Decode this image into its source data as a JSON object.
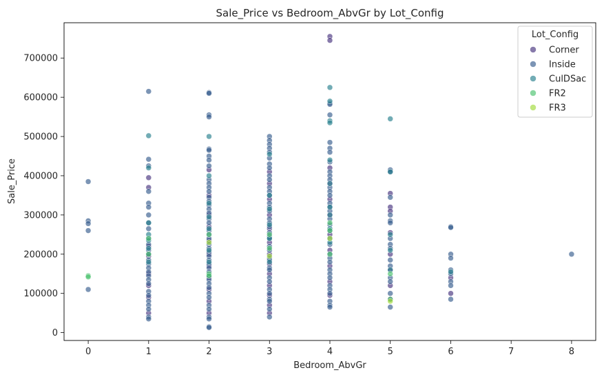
{
  "chart_data": {
    "type": "scatter",
    "title": "Sale_Price vs Bedroom_AbvGr by Lot_Config",
    "xlabel": "Bedroom_AbvGr",
    "ylabel": "Sale_Price",
    "xlim": [
      -0.4,
      8.4
    ],
    "ylim": [
      -20000,
      790000
    ],
    "xticks": [
      0,
      1,
      2,
      3,
      4,
      5,
      6,
      7,
      8
    ],
    "yticks": [
      0,
      100000,
      200000,
      300000,
      400000,
      500000,
      600000,
      700000
    ],
    "grid": false,
    "legend": {
      "title": "Lot_Config",
      "placement": "top-right"
    },
    "series": [
      {
        "name": "Corner",
        "color": "#46327e",
        "points": [
          [
            1,
            395000
          ],
          [
            1,
            370000
          ],
          [
            1,
            220000
          ],
          [
            1,
            195000
          ],
          [
            1,
            150000
          ],
          [
            1,
            120000
          ],
          [
            1,
            90000
          ],
          [
            1,
            50000
          ],
          [
            2,
            415000
          ],
          [
            2,
            350000
          ],
          [
            2,
            300000
          ],
          [
            2,
            270000
          ],
          [
            2,
            235000
          ],
          [
            2,
            200000
          ],
          [
            2,
            170000
          ],
          [
            2,
            140000
          ],
          [
            2,
            110000
          ],
          [
            2,
            80000
          ],
          [
            2,
            50000
          ],
          [
            3,
            410000
          ],
          [
            3,
            380000
          ],
          [
            3,
            340000
          ],
          [
            3,
            300000
          ],
          [
            3,
            265000
          ],
          [
            3,
            230000
          ],
          [
            3,
            200000
          ],
          [
            3,
            175000
          ],
          [
            3,
            150000
          ],
          [
            3,
            120000
          ],
          [
            3,
            95000
          ],
          [
            3,
            70000
          ],
          [
            3,
            50000
          ],
          [
            4,
            755000
          ],
          [
            4,
            745000
          ],
          [
            4,
            420000
          ],
          [
            4,
            380000
          ],
          [
            4,
            340000
          ],
          [
            4,
            300000
          ],
          [
            4,
            250000
          ],
          [
            4,
            210000
          ],
          [
            4,
            170000
          ],
          [
            4,
            130000
          ],
          [
            4,
            95000
          ],
          [
            5,
            355000
          ],
          [
            5,
            320000
          ],
          [
            5,
            310000
          ],
          [
            5,
            255000
          ],
          [
            5,
            200000
          ],
          [
            5,
            160000
          ],
          [
            5,
            120000
          ],
          [
            5,
            85000
          ],
          [
            6,
            140000
          ],
          [
            6,
            100000
          ]
        ]
      },
      {
        "name": "Inside",
        "color": "#365c8d",
        "points": [
          [
            0,
            385000
          ],
          [
            0,
            285000
          ],
          [
            0,
            278000
          ],
          [
            0,
            260000
          ],
          [
            0,
            110000
          ],
          [
            1,
            615000
          ],
          [
            1,
            442000
          ],
          [
            1,
            425000
          ],
          [
            1,
            360000
          ],
          [
            1,
            330000
          ],
          [
            1,
            320000
          ],
          [
            1,
            300000
          ],
          [
            1,
            280000
          ],
          [
            1,
            265000
          ],
          [
            1,
            240000
          ],
          [
            1,
            225000
          ],
          [
            1,
            210000
          ],
          [
            1,
            200000
          ],
          [
            1,
            185000
          ],
          [
            1,
            175000
          ],
          [
            1,
            165000
          ],
          [
            1,
            155000
          ],
          [
            1,
            145000
          ],
          [
            1,
            135000
          ],
          [
            1,
            125000
          ],
          [
            1,
            105000
          ],
          [
            1,
            95000
          ],
          [
            1,
            80000
          ],
          [
            1,
            70000
          ],
          [
            1,
            60000
          ],
          [
            1,
            40000
          ],
          [
            1,
            35000
          ],
          [
            2,
            612000
          ],
          [
            2,
            610000
          ],
          [
            2,
            555000
          ],
          [
            2,
            550000
          ],
          [
            2,
            468000
          ],
          [
            2,
            465000
          ],
          [
            2,
            450000
          ],
          [
            2,
            440000
          ],
          [
            2,
            425000
          ],
          [
            2,
            390000
          ],
          [
            2,
            380000
          ],
          [
            2,
            370000
          ],
          [
            2,
            360000
          ],
          [
            2,
            345000
          ],
          [
            2,
            335000
          ],
          [
            2,
            325000
          ],
          [
            2,
            315000
          ],
          [
            2,
            305000
          ],
          [
            2,
            290000
          ],
          [
            2,
            280000
          ],
          [
            2,
            260000
          ],
          [
            2,
            250000
          ],
          [
            2,
            240000
          ],
          [
            2,
            225000
          ],
          [
            2,
            215000
          ],
          [
            2,
            205000
          ],
          [
            2,
            195000
          ],
          [
            2,
            185000
          ],
          [
            2,
            175000
          ],
          [
            2,
            165000
          ],
          [
            2,
            155000
          ],
          [
            2,
            145000
          ],
          [
            2,
            135000
          ],
          [
            2,
            125000
          ],
          [
            2,
            115000
          ],
          [
            2,
            100000
          ],
          [
            2,
            90000
          ],
          [
            2,
            70000
          ],
          [
            2,
            60000
          ],
          [
            2,
            40000
          ],
          [
            2,
            35000
          ],
          [
            2,
            15000
          ],
          [
            2,
            13000
          ],
          [
            3,
            500000
          ],
          [
            3,
            490000
          ],
          [
            3,
            480000
          ],
          [
            3,
            470000
          ],
          [
            3,
            460000
          ],
          [
            3,
            445000
          ],
          [
            3,
            430000
          ],
          [
            3,
            420000
          ],
          [
            3,
            400000
          ],
          [
            3,
            390000
          ],
          [
            3,
            370000
          ],
          [
            3,
            360000
          ],
          [
            3,
            350000
          ],
          [
            3,
            330000
          ],
          [
            3,
            320000
          ],
          [
            3,
            310000
          ],
          [
            3,
            290000
          ],
          [
            3,
            280000
          ],
          [
            3,
            270000
          ],
          [
            3,
            255000
          ],
          [
            3,
            245000
          ],
          [
            3,
            240000
          ],
          [
            3,
            220000
          ],
          [
            3,
            210000
          ],
          [
            3,
            190000
          ],
          [
            3,
            185000
          ],
          [
            3,
            165000
          ],
          [
            3,
            160000
          ],
          [
            3,
            140000
          ],
          [
            3,
            130000
          ],
          [
            3,
            110000
          ],
          [
            3,
            100000
          ],
          [
            3,
            85000
          ],
          [
            3,
            80000
          ],
          [
            3,
            60000
          ],
          [
            3,
            40000
          ],
          [
            4,
            585000
          ],
          [
            4,
            582000
          ],
          [
            4,
            555000
          ],
          [
            4,
            485000
          ],
          [
            4,
            470000
          ],
          [
            4,
            460000
          ],
          [
            4,
            435000
          ],
          [
            4,
            410000
          ],
          [
            4,
            400000
          ],
          [
            4,
            390000
          ],
          [
            4,
            370000
          ],
          [
            4,
            360000
          ],
          [
            4,
            350000
          ],
          [
            4,
            330000
          ],
          [
            4,
            320000
          ],
          [
            4,
            310000
          ],
          [
            4,
            290000
          ],
          [
            4,
            275000
          ],
          [
            4,
            260000
          ],
          [
            4,
            240000
          ],
          [
            4,
            225000
          ],
          [
            4,
            200000
          ],
          [
            4,
            190000
          ],
          [
            4,
            180000
          ],
          [
            4,
            160000
          ],
          [
            4,
            150000
          ],
          [
            4,
            140000
          ],
          [
            4,
            120000
          ],
          [
            4,
            110000
          ],
          [
            4,
            100000
          ],
          [
            4,
            80000
          ],
          [
            4,
            70000
          ],
          [
            4,
            65000
          ],
          [
            5,
            415000
          ],
          [
            5,
            410000
          ],
          [
            5,
            345000
          ],
          [
            5,
            300000
          ],
          [
            5,
            285000
          ],
          [
            5,
            280000
          ],
          [
            5,
            240000
          ],
          [
            5,
            225000
          ],
          [
            5,
            215000
          ],
          [
            5,
            185000
          ],
          [
            5,
            170000
          ],
          [
            5,
            140000
          ],
          [
            5,
            130000
          ],
          [
            5,
            100000
          ],
          [
            5,
            65000
          ],
          [
            6,
            270000
          ],
          [
            6,
            268000
          ],
          [
            6,
            200000
          ],
          [
            6,
            190000
          ],
          [
            6,
            160000
          ],
          [
            6,
            150000
          ],
          [
            6,
            130000
          ],
          [
            6,
            120000
          ],
          [
            6,
            85000
          ],
          [
            8,
            200000
          ]
        ]
      },
      {
        "name": "CulDSac",
        "color": "#277f8e",
        "points": [
          [
            1,
            502000
          ],
          [
            1,
            420000
          ],
          [
            1,
            280000
          ],
          [
            1,
            250000
          ],
          [
            1,
            235000
          ],
          [
            1,
            215000
          ],
          [
            1,
            180000
          ],
          [
            2,
            500000
          ],
          [
            2,
            400000
          ],
          [
            2,
            330000
          ],
          [
            2,
            295000
          ],
          [
            2,
            265000
          ],
          [
            2,
            210000
          ],
          [
            2,
            180000
          ],
          [
            3,
            455000
          ],
          [
            3,
            350000
          ],
          [
            3,
            315000
          ],
          [
            3,
            275000
          ],
          [
            3,
            240000
          ],
          [
            3,
            180000
          ],
          [
            4,
            625000
          ],
          [
            4,
            590000
          ],
          [
            4,
            540000
          ],
          [
            4,
            535000
          ],
          [
            4,
            440000
          ],
          [
            4,
            380000
          ],
          [
            4,
            320000
          ],
          [
            4,
            300000
          ],
          [
            4,
            265000
          ],
          [
            4,
            230000
          ],
          [
            5,
            545000
          ],
          [
            5,
            410000
          ],
          [
            5,
            250000
          ],
          [
            5,
            210000
          ],
          [
            5,
            160000
          ],
          [
            6,
            155000
          ]
        ]
      },
      {
        "name": "FR2",
        "color": "#4ac16d",
        "points": [
          [
            0,
            145000
          ],
          [
            0,
            142000
          ],
          [
            1,
            240000
          ],
          [
            1,
            200000
          ],
          [
            2,
            250000
          ],
          [
            2,
            150000
          ],
          [
            2,
            145000
          ],
          [
            3,
            250000
          ],
          [
            3,
            215000
          ],
          [
            4,
            280000
          ],
          [
            4,
            260000
          ],
          [
            4,
            200000
          ],
          [
            5,
            150000
          ],
          [
            5,
            85000
          ]
        ]
      },
      {
        "name": "FR3",
        "color": "#a0da39",
        "points": [
          [
            2,
            230000
          ],
          [
            3,
            195000
          ],
          [
            4,
            240000
          ],
          [
            5,
            80000
          ]
        ]
      }
    ]
  }
}
